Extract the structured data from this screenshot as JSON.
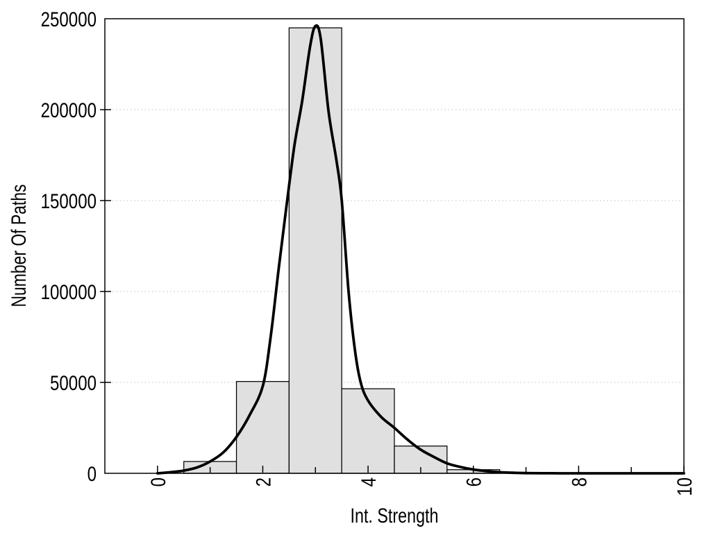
{
  "page": {
    "background": "#ffffff"
  },
  "chart_data": {
    "type": "bar",
    "subtype": "histogram_with_smoothed_curve",
    "title": "",
    "xlabel": "Int. Strength",
    "ylabel": "Number Of Paths",
    "xlim": [
      -1,
      10
    ],
    "ylim": [
      0,
      250000
    ],
    "x_major_ticks": [
      0,
      2,
      4,
      6,
      8,
      10
    ],
    "x_tick_labels": [
      "0",
      "2",
      "4",
      "6",
      "8",
      "10"
    ],
    "x_minor_ticks": [
      1,
      3,
      5,
      7,
      9
    ],
    "y_ticks": [
      0,
      50000,
      100000,
      150000,
      200000,
      250000
    ],
    "y_tick_labels": [
      "0",
      "50000",
      "100000",
      "150000",
      "200000",
      "250000"
    ],
    "grid": {
      "horizontal": true,
      "vertical": false,
      "style": "dotted"
    },
    "legend": null,
    "histogram": {
      "bin_width": 1,
      "bin_centers": [
        1,
        2,
        3,
        4,
        5,
        6
      ],
      "bin_edges": [
        0.5,
        1.5,
        2.5,
        3.5,
        4.5,
        5.5,
        6.5
      ],
      "counts": [
        6500,
        50500,
        245000,
        46500,
        15000,
        2000
      ]
    },
    "curve": {
      "name": "smoothed-fit-curve",
      "points": [
        [
          0,
          0
        ],
        [
          0.25,
          600
        ],
        [
          0.5,
          1500
        ],
        [
          0.75,
          3200
        ],
        [
          1,
          6500
        ],
        [
          1.25,
          11500
        ],
        [
          1.5,
          20000
        ],
        [
          1.75,
          32000
        ],
        [
          2,
          48000
        ],
        [
          2.15,
          75000
        ],
        [
          2.3,
          112000
        ],
        [
          2.45,
          147000
        ],
        [
          2.6,
          180000
        ],
        [
          2.75,
          205000
        ],
        [
          2.9,
          235000
        ],
        [
          3,
          246000
        ],
        [
          3.1,
          239000
        ],
        [
          3.25,
          199000
        ],
        [
          3.4,
          172000
        ],
        [
          3.5,
          150000
        ],
        [
          3.63,
          100000
        ],
        [
          3.75,
          68000
        ],
        [
          3.86,
          50000
        ],
        [
          4,
          40000
        ],
        [
          4.25,
          31000
        ],
        [
          4.5,
          25000
        ],
        [
          4.75,
          18500
        ],
        [
          5,
          13000
        ],
        [
          5.25,
          9000
        ],
        [
          5.5,
          5500
        ],
        [
          5.75,
          3500
        ],
        [
          6,
          2100
        ],
        [
          6.25,
          1200
        ],
        [
          6.5,
          600
        ],
        [
          6.75,
          300
        ],
        [
          7,
          130
        ],
        [
          7.5,
          30
        ],
        [
          8,
          0
        ],
        [
          9,
          0
        ],
        [
          10,
          0
        ]
      ]
    },
    "colors": {
      "bar_fill": "#e0e0e0",
      "bar_stroke": "#000000",
      "curve": "#000000",
      "grid": "#b8b8b8",
      "frame": "#000000",
      "text": "#000000"
    }
  }
}
